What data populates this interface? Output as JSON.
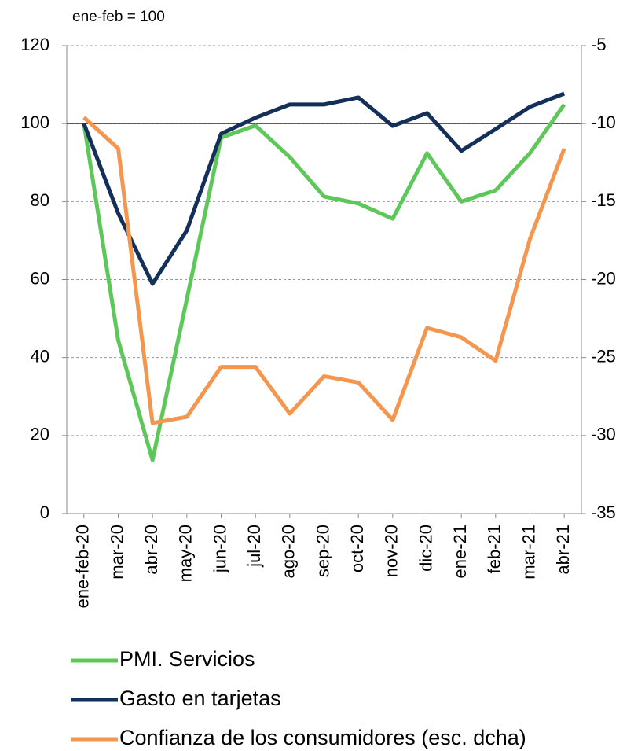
{
  "chart_data": {
    "type": "line",
    "subtitle": "ene-feb = 100",
    "categories": [
      "ene-feb-20",
      "mar-20",
      "abr-20",
      "may-20",
      "jun-20",
      "jul-20",
      "ago-20",
      "sep-20",
      "oct-20",
      "nov-20",
      "dic-20",
      "ene-21",
      "feb-21",
      "mar-21",
      "abr-21"
    ],
    "series": [
      {
        "name": "PMI. Servicios",
        "color": "#5ec75a",
        "values": [
          100,
          44.4,
          13.7,
          55,
          96.4,
          99.5,
          91.4,
          81.3,
          79.5,
          75.6,
          92.4,
          80,
          82.9,
          92.4,
          104.9
        ]
      },
      {
        "name": "Gasto en tarjetas",
        "color": "#14305a",
        "values": [
          100,
          77,
          58.9,
          72.6,
          97.4,
          101.5,
          104.9,
          104.9,
          106.7,
          99.4,
          102.7,
          93,
          98.6,
          104.3,
          107.7
        ]
      },
      {
        "name": "Confianza de los consumidores (esc. dcha)",
        "color": "#f5964f",
        "axis": "y2",
        "values": [
          -9.6,
          -11.6,
          -29.2,
          -28.8,
          -25.6,
          -25.6,
          -28.6,
          -26.2,
          -26.6,
          -29,
          -23.1,
          -23.7,
          -25.2,
          -17.4,
          -11.6
        ]
      }
    ],
    "ylim": [
      0,
      120
    ],
    "yticks": [
      0,
      20,
      40,
      60,
      80,
      100,
      120
    ],
    "y2lim": [
      -35,
      -5
    ],
    "y2ticks": [
      -35,
      -30,
      -25,
      -20,
      -15,
      -10,
      -5
    ],
    "reference_line": 100,
    "grid": true
  }
}
